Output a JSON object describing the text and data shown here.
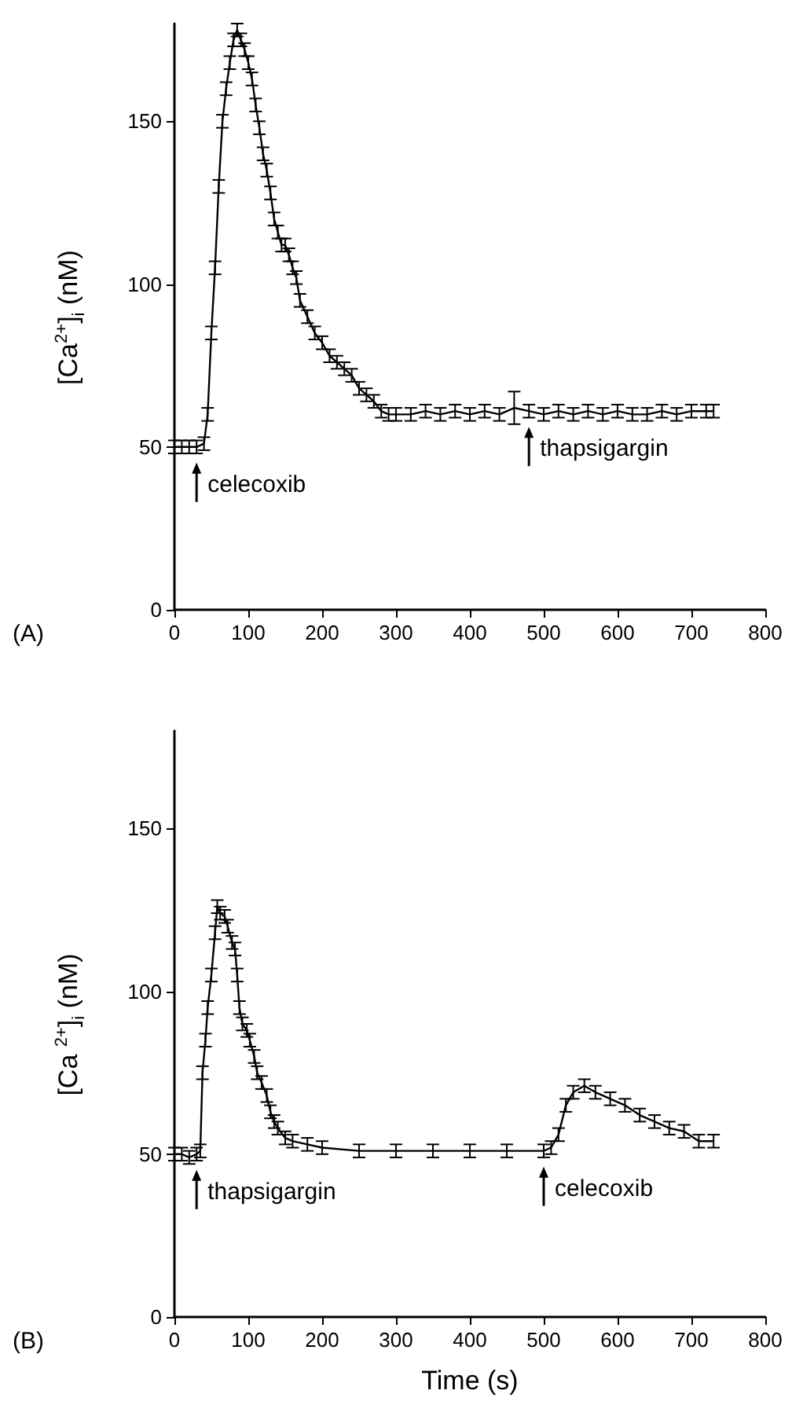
{
  "chart_data": [
    {
      "type": "line",
      "ylabel": "[Ca$^{2+}$]$_{i}$  (nM)",
      "xlim": [
        0,
        800
      ],
      "xticks": [
        0,
        100,
        200,
        300,
        400,
        500,
        600,
        700,
        800
      ],
      "ylim": [
        0,
        180
      ],
      "yticks": [
        0,
        50,
        100,
        150
      ],
      "annotations": [
        "(A)",
        {
          "text": "celecoxib",
          "x": 30,
          "y": 50
        },
        {
          "text": "thapsigargin",
          "x": 480,
          "y": 61
        }
      ],
      "series": [
        {
          "color": "#000000",
          "x": [
            0,
            10,
            20,
            30,
            40,
            45,
            50,
            55,
            60,
            65,
            70,
            75,
            80,
            85,
            90,
            95,
            100,
            105,
            110,
            115,
            120,
            125,
            130,
            135,
            140,
            145,
            150,
            155,
            160,
            165,
            170,
            180,
            190,
            200,
            210,
            220,
            230,
            240,
            250,
            260,
            270,
            280,
            290,
            300,
            320,
            340,
            360,
            380,
            400,
            420,
            440,
            460,
            480,
            500,
            520,
            540,
            560,
            580,
            600,
            620,
            640,
            660,
            680,
            700,
            720,
            730
          ],
          "values": [
            50,
            50,
            50,
            50,
            51,
            60,
            85,
            105,
            130,
            150,
            160,
            168,
            175,
            178,
            175,
            172,
            168,
            163,
            155,
            148,
            140,
            135,
            128,
            120,
            116,
            112,
            112,
            109,
            105,
            102,
            95,
            90,
            85,
            82,
            78,
            76,
            74,
            72,
            68,
            66,
            64,
            61,
            60,
            60,
            60,
            61,
            60,
            61,
            60,
            61,
            60,
            62,
            61,
            60,
            61,
            60,
            61,
            60,
            61,
            60,
            60,
            61,
            60,
            61,
            61,
            61
          ],
          "errors": [
            2,
            2,
            2,
            2,
            2,
            2,
            2,
            2,
            2,
            2,
            2,
            2,
            2,
            2,
            2,
            2,
            2,
            2,
            2,
            2,
            2,
            2,
            2,
            2,
            2,
            2,
            2,
            2,
            2,
            2,
            2,
            2,
            2,
            2,
            2,
            2,
            2,
            2,
            2,
            2,
            2,
            2,
            2,
            2,
            2,
            2,
            2,
            2,
            2,
            2,
            2,
            5,
            2,
            2,
            2,
            2,
            2,
            2,
            2,
            2,
            2,
            2,
            2,
            2,
            2,
            2
          ]
        }
      ]
    },
    {
      "type": "line",
      "ylabel": "[Ca $^{2+}$]$_{i}$  (nM)",
      "xlabel": "Time (s)",
      "xlim": [
        0,
        800
      ],
      "xticks": [
        0,
        100,
        200,
        300,
        400,
        500,
        600,
        700,
        800
      ],
      "ylim": [
        0,
        180
      ],
      "yticks": [
        0,
        50,
        100,
        150
      ],
      "annotations": [
        "(B)",
        {
          "text": "thapsigargin",
          "x": 30,
          "y": 50
        },
        {
          "text": "celecoxib",
          "x": 500,
          "y": 51
        }
      ],
      "series": [
        {
          "color": "#000000",
          "x": [
            0,
            10,
            20,
            30,
            35,
            38,
            42,
            45,
            50,
            55,
            58,
            62,
            68,
            72,
            78,
            82,
            85,
            88,
            92,
            98,
            102,
            108,
            112,
            118,
            125,
            130,
            135,
            140,
            150,
            160,
            180,
            200,
            250,
            300,
            350,
            400,
            450,
            500,
            510,
            520,
            530,
            540,
            555,
            570,
            590,
            610,
            630,
            650,
            670,
            690,
            710,
            730
          ],
          "values": [
            50,
            50,
            49,
            50,
            51,
            75,
            85,
            95,
            105,
            118,
            126,
            124,
            123,
            120,
            115,
            113,
            105,
            95,
            90,
            88,
            85,
            80,
            75,
            72,
            68,
            63,
            60,
            58,
            55,
            54,
            53,
            52,
            51,
            51,
            51,
            51,
            51,
            51,
            52,
            56,
            65,
            69,
            71,
            69,
            67,
            65,
            62,
            60,
            58,
            57,
            54,
            54
          ],
          "errors": [
            2,
            2,
            2,
            2,
            2,
            2,
            2,
            2,
            2,
            2,
            2,
            2,
            2,
            2,
            2,
            2,
            2,
            2,
            2,
            2,
            2,
            2,
            2,
            2,
            2,
            2,
            2,
            2,
            2,
            2,
            2,
            2,
            2,
            2,
            2,
            2,
            2,
            2,
            2,
            2,
            2,
            2,
            2,
            2,
            2,
            2,
            2,
            2,
            2,
            2,
            2,
            2
          ]
        }
      ]
    }
  ]
}
